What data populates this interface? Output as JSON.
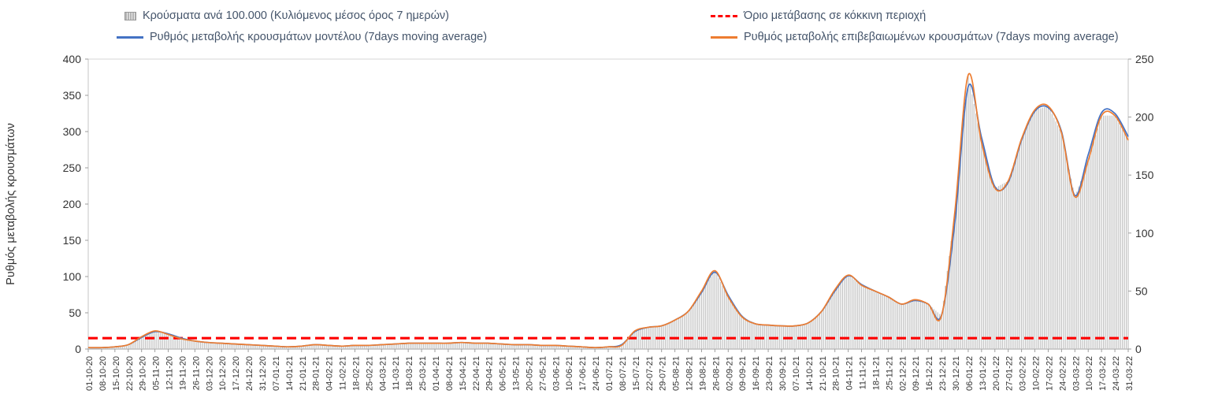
{
  "legend": {
    "items": [
      {
        "label": "Κρούσματα ανά 100.000 (Κυλιόμενος μέσος όρος 7 ημερών)",
        "icon": "bar-series-icon",
        "type": "bar",
        "color": "#bdbdbd"
      },
      {
        "label": "Όριο μετάβασης σε κόκκινη περιοχή",
        "icon": "threshold-dash-icon",
        "type": "dash",
        "color": "#fe0000"
      },
      {
        "label": "Ρυθμός μεταβολής κρουσμάτων μοντέλου (7days moving average)",
        "icon": "model-line-icon",
        "type": "line",
        "color": "#4472c4"
      },
      {
        "label": "Ρυθμός μεταβολής επιβεβαιωμένων κρουσμάτων (7days moving average)",
        "icon": "confirmed-line-icon",
        "type": "line",
        "color": "#ed7d31"
      }
    ]
  },
  "chart_data": {
    "type": "bar",
    "title": "",
    "x": [
      "01-10-20",
      "08-10-20",
      "15-10-20",
      "22-10-20",
      "29-10-20",
      "05-11-20",
      "12-11-20",
      "19-11-20",
      "26-11-20",
      "03-12-20",
      "10-12-20",
      "17-12-20",
      "24-12-20",
      "31-12-20",
      "07-01-21",
      "14-01-21",
      "21-01-21",
      "28-01-21",
      "04-02-21",
      "11-02-21",
      "18-02-21",
      "25-02-21",
      "04-03-21",
      "11-03-21",
      "18-03-21",
      "25-03-21",
      "01-04-21",
      "08-04-21",
      "15-04-21",
      "22-04-21",
      "29-04-21",
      "06-05-21",
      "13-05-21",
      "20-05-21",
      "27-05-21",
      "03-06-21",
      "10-06-21",
      "17-06-21",
      "24-06-21",
      "01-07-21",
      "08-07-21",
      "15-07-21",
      "22-07-21",
      "29-07-21",
      "05-08-21",
      "12-08-21",
      "19-08-21",
      "26-08-21",
      "02-09-21",
      "09-09-21",
      "16-09-21",
      "23-09-21",
      "30-09-21",
      "07-10-21",
      "14-10-21",
      "21-10-21",
      "28-10-21",
      "04-11-21",
      "11-11-21",
      "18-11-21",
      "25-11-21",
      "02-12-21",
      "09-12-21",
      "16-12-21",
      "23-12-21",
      "30-12-21",
      "06-01-22",
      "13-01-22",
      "20-01-22",
      "27-01-22",
      "03-02-22",
      "10-02-22",
      "17-02-22",
      "24-02-22",
      "03-03-22",
      "10-03-22",
      "17-03-22",
      "24-03-22",
      "31-03-22"
    ],
    "series": [
      {
        "name": "Κρούσματα ανά 100.000 (Κυλιόμενος μέσος όρος 7 ημερών)",
        "type": "bar",
        "axis": "right",
        "color": "#c3c3c3",
        "values": [
          1.3,
          1.3,
          1.9,
          3.8,
          10.6,
          15.6,
          12.5,
          8.8,
          6.9,
          5.6,
          5.0,
          4.4,
          3.8,
          3.1,
          2.5,
          1.9,
          2.5,
          3.8,
          3.1,
          2.5,
          3.1,
          3.1,
          3.8,
          4.4,
          5.0,
          5.0,
          5.0,
          5.0,
          5.6,
          5.0,
          5.0,
          4.4,
          3.8,
          3.8,
          3.1,
          3.1,
          2.5,
          1.9,
          1.3,
          1.9,
          3.1,
          15.6,
          18.8,
          20.0,
          25.0,
          32.5,
          50.0,
          67.5,
          45.0,
          28.1,
          21.9,
          20.6,
          20.0,
          20.0,
          22.5,
          32.5,
          51.3,
          63.8,
          55.0,
          50.0,
          45.0,
          38.8,
          42.5,
          38.8,
          28.8,
          118.8,
          236.3,
          178.1,
          138.8,
          145.0,
          181.3,
          206.3,
          209.4,
          186.3,
          131.3,
          162.5,
          201.3,
          201.3,
          180.0
        ]
      },
      {
        "name": "Ρυθμός μεταβολής κρουσμάτων μοντέλου (7days moving average)",
        "type": "line",
        "axis": "left",
        "color": "#4472c4",
        "values": [
          2,
          2,
          3,
          6,
          16,
          24,
          21,
          15,
          11,
          9,
          8,
          7,
          6,
          5,
          4,
          3,
          4,
          6,
          5,
          4,
          5,
          5,
          6,
          7,
          8,
          8,
          8,
          8,
          9,
          8,
          8,
          7,
          6,
          6,
          5,
          5,
          4,
          3,
          2,
          3,
          6,
          24,
          30,
          32,
          40,
          52,
          78,
          106,
          74,
          46,
          35,
          33,
          32,
          32,
          36,
          52,
          80,
          101,
          89,
          80,
          72,
          62,
          67,
          62,
          47,
          175,
          362,
          292,
          224,
          230,
          288,
          328,
          333,
          300,
          212,
          268,
          326,
          325,
          293
        ]
      },
      {
        "name": "Ρυθμός μεταβολής επιβεβαιωμένων κρουσμάτων (7days moving average)",
        "type": "line",
        "axis": "left",
        "color": "#ed7d31",
        "values": [
          2,
          2,
          3,
          6,
          17,
          25,
          20,
          14,
          11,
          9,
          8,
          7,
          6,
          5,
          4,
          3,
          4,
          6,
          5,
          4,
          5,
          5,
          6,
          7,
          8,
          8,
          8,
          8,
          9,
          8,
          8,
          7,
          6,
          6,
          5,
          5,
          4,
          3,
          2,
          3,
          5,
          25,
          30,
          32,
          40,
          52,
          80,
          108,
          72,
          45,
          35,
          33,
          32,
          32,
          36,
          52,
          82,
          102,
          88,
          80,
          72,
          62,
          68,
          62,
          46,
          190,
          378,
          285,
          222,
          232,
          290,
          330,
          335,
          298,
          210,
          260,
          322,
          322,
          288
        ]
      }
    ],
    "threshold": {
      "name": "Όριο μετάβασης σε κόκκινη περιοχή",
      "axis": "left",
      "value": 15,
      "color": "#fe0000",
      "style": "dashed"
    },
    "left_axis": {
      "label": "Ρυθμός μεταβολής κρουσμάτων",
      "min": 0,
      "max": 400,
      "step": 50
    },
    "right_axis": {
      "label": "",
      "min": 0,
      "max": 250,
      "step": 50
    },
    "grid": false,
    "legend_position": "top"
  }
}
